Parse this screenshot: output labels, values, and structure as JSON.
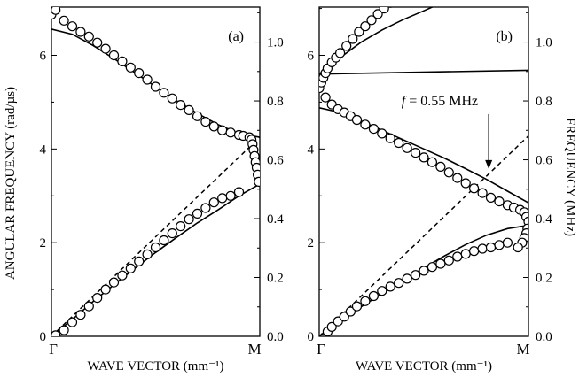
{
  "chart_data": [
    {
      "panel": "(a)",
      "type": "scatter",
      "xlabel": "WAVE VECTOR (mm⁻¹)",
      "ylabel_left": "ANGULAR FREQUENCY (rad/µs)",
      "x_ticks": [
        "Γ",
        "M"
      ],
      "x_range": [
        0,
        1
      ],
      "ylim_left": [
        0,
        7.03
      ],
      "yticks_left": [
        "0",
        "2",
        "4",
        "6"
      ],
      "ylim_right": [
        0,
        1.119
      ],
      "yticks_right": [
        "0.0",
        "0.2",
        "0.4",
        "0.6",
        "0.8",
        "1.0"
      ],
      "series": [
        {
          "style": "solid",
          "x": [
            0.0,
            0.1,
            0.2,
            0.3,
            0.4,
            0.5,
            0.6,
            0.7,
            0.8,
            0.9,
            1.0
          ],
          "y": [
            6.56,
            6.45,
            6.21,
            5.93,
            5.63,
            5.33,
            5.03,
            4.76,
            4.52,
            4.33,
            4.25
          ]
        },
        {
          "style": "solid",
          "x": [
            0.0,
            0.1,
            0.2,
            0.3,
            0.4,
            0.5,
            0.6,
            0.7,
            0.8,
            0.9,
            1.0
          ],
          "y": [
            0.0,
            0.36,
            0.74,
            1.1,
            1.45,
            1.79,
            2.11,
            2.42,
            2.7,
            3.0,
            3.25
          ]
        },
        {
          "style": "dashed",
          "x": [
            0.0,
            1.0
          ],
          "y": [
            0.0,
            4.25
          ]
        },
        {
          "style": "circles",
          "x": [
            0.0,
            0.02,
            0.06,
            0.1,
            0.14,
            0.18,
            0.22,
            0.26,
            0.3,
            0.34,
            0.38,
            0.42,
            0.46,
            0.5,
            0.54,
            0.58,
            0.62,
            0.66,
            0.7,
            0.74,
            0.78,
            0.82,
            0.86,
            0.9,
            0.92,
            0.95,
            0.96,
            0.965,
            0.97,
            0.975,
            0.98,
            0.985,
            0.99,
            0.995
          ],
          "y": [
            6.87,
            6.97,
            6.74,
            6.62,
            6.5,
            6.4,
            6.27,
            6.14,
            6.0,
            5.87,
            5.74,
            5.62,
            5.48,
            5.33,
            5.2,
            5.08,
            4.94,
            4.83,
            4.7,
            4.58,
            4.48,
            4.4,
            4.35,
            4.3,
            4.28,
            4.25,
            4.2,
            4.1,
            3.98,
            3.85,
            3.72,
            3.6,
            3.45,
            3.3
          ]
        },
        {
          "style": "circles",
          "x": [
            0.02,
            0.06,
            0.1,
            0.14,
            0.18,
            0.22,
            0.26,
            0.3,
            0.34,
            0.38,
            0.42,
            0.46,
            0.5,
            0.54,
            0.58,
            0.62,
            0.66,
            0.7,
            0.74,
            0.78,
            0.82,
            0.86,
            0.9
          ],
          "y": [
            0.02,
            0.13,
            0.3,
            0.46,
            0.64,
            0.82,
            1.0,
            1.15,
            1.3,
            1.45,
            1.6,
            1.75,
            1.9,
            2.05,
            2.2,
            2.35,
            2.5,
            2.62,
            2.74,
            2.86,
            2.95,
            3.0,
            3.08
          ]
        }
      ]
    },
    {
      "panel": "(b)",
      "type": "scatter",
      "xlabel": "WAVE VECTOR (mm⁻¹)",
      "ylabel_right": "FREQUENCY (MHz)",
      "x_ticks": [
        "Γ",
        "M"
      ],
      "x_range": [
        0,
        1
      ],
      "ylim_left": [
        0,
        7.03
      ],
      "yticks_left": [
        "0",
        "2",
        "4",
        "6"
      ],
      "ylim_right": [
        0,
        1.119
      ],
      "yticks_right": [
        "0.0",
        "0.2",
        "0.4",
        "0.6",
        "0.8",
        "1.0"
      ],
      "annotation": {
        "prefix": "f",
        "text": " = 0.55 MHz",
        "arrow_to": {
          "x": 0.81,
          "y": 3.46
        }
      },
      "series": [
        {
          "style": "solid",
          "x": [
            0.0,
            0.1,
            0.2,
            0.3,
            0.4,
            0.5,
            0.6,
            0.7,
            0.8,
            0.9,
            1.0
          ],
          "y": [
            5.6,
            5.95,
            6.28,
            6.54,
            6.76,
            6.95,
            7.15,
            7.35,
            7.55,
            7.75,
            7.95
          ]
        },
        {
          "style": "solid",
          "x": [
            0.0,
            1.0
          ],
          "y": [
            5.6,
            5.68
          ]
        },
        {
          "style": "solid",
          "x": [
            0.0,
            0.1,
            0.2,
            0.3,
            0.4,
            0.5,
            0.6,
            0.7,
            0.8,
            0.9,
            1.0
          ],
          "y": [
            4.88,
            4.78,
            4.6,
            4.4,
            4.2,
            4.0,
            3.8,
            3.58,
            3.35,
            3.1,
            2.85
          ]
        },
        {
          "style": "solid",
          "x": [
            0.0,
            0.1,
            0.2,
            0.3,
            0.4,
            0.5,
            0.6,
            0.7,
            0.8,
            0.9,
            1.0
          ],
          "y": [
            0.0,
            0.33,
            0.63,
            0.91,
            1.19,
            1.46,
            1.72,
            1.96,
            2.16,
            2.3,
            2.37
          ]
        },
        {
          "style": "dashed",
          "x": [
            0.0,
            1.0
          ],
          "y": [
            0.0,
            4.28
          ]
        },
        {
          "style": "circles",
          "x": [
            0.0,
            0.01,
            0.02,
            0.03,
            0.04,
            0.06,
            0.08,
            0.1,
            0.13,
            0.16,
            0.19,
            0.22,
            0.25,
            0.28,
            0.31,
            0.34,
            0.37,
            0.4,
            0.43,
            0.46
          ],
          "y": [
            5.3,
            5.42,
            5.52,
            5.62,
            5.72,
            5.85,
            5.95,
            6.05,
            6.2,
            6.35,
            6.5,
            6.62,
            6.75,
            6.88,
            7.0,
            7.12,
            7.25,
            7.38,
            7.5,
            7.62
          ]
        },
        {
          "style": "circles",
          "x": [
            0.03,
            0.06,
            0.09,
            0.12,
            0.15,
            0.18,
            0.22,
            0.26,
            0.3,
            0.34,
            0.38,
            0.42,
            0.46,
            0.5,
            0.54,
            0.58,
            0.62,
            0.66,
            0.7,
            0.74,
            0.78,
            0.82,
            0.86,
            0.9,
            0.93,
            0.96,
            0.98,
            0.99,
            1.0,
            0.995,
            0.99,
            0.98,
            0.97,
            0.95
          ],
          "y": [
            5.1,
            4.95,
            4.85,
            4.78,
            4.7,
            4.62,
            4.52,
            4.43,
            4.33,
            4.23,
            4.13,
            4.02,
            3.92,
            3.82,
            3.72,
            3.62,
            3.5,
            3.38,
            3.27,
            3.16,
            3.06,
            2.96,
            2.88,
            2.8,
            2.75,
            2.7,
            2.65,
            2.55,
            2.45,
            2.3,
            2.2,
            2.1,
            2.0,
            1.9
          ]
        },
        {
          "style": "circles",
          "x": [
            0.04,
            0.06,
            0.09,
            0.12,
            0.15,
            0.18,
            0.22,
            0.26,
            0.3,
            0.34,
            0.38,
            0.42,
            0.46,
            0.5,
            0.54,
            0.58,
            0.62,
            0.66,
            0.7,
            0.74,
            0.78,
            0.82,
            0.86,
            0.9
          ],
          "y": [
            0.1,
            0.2,
            0.32,
            0.42,
            0.53,
            0.64,
            0.75,
            0.86,
            0.97,
            1.06,
            1.14,
            1.23,
            1.31,
            1.4,
            1.48,
            1.55,
            1.62,
            1.7,
            1.76,
            1.82,
            1.87,
            1.9,
            1.95,
            2.0
          ]
        }
      ]
    }
  ]
}
